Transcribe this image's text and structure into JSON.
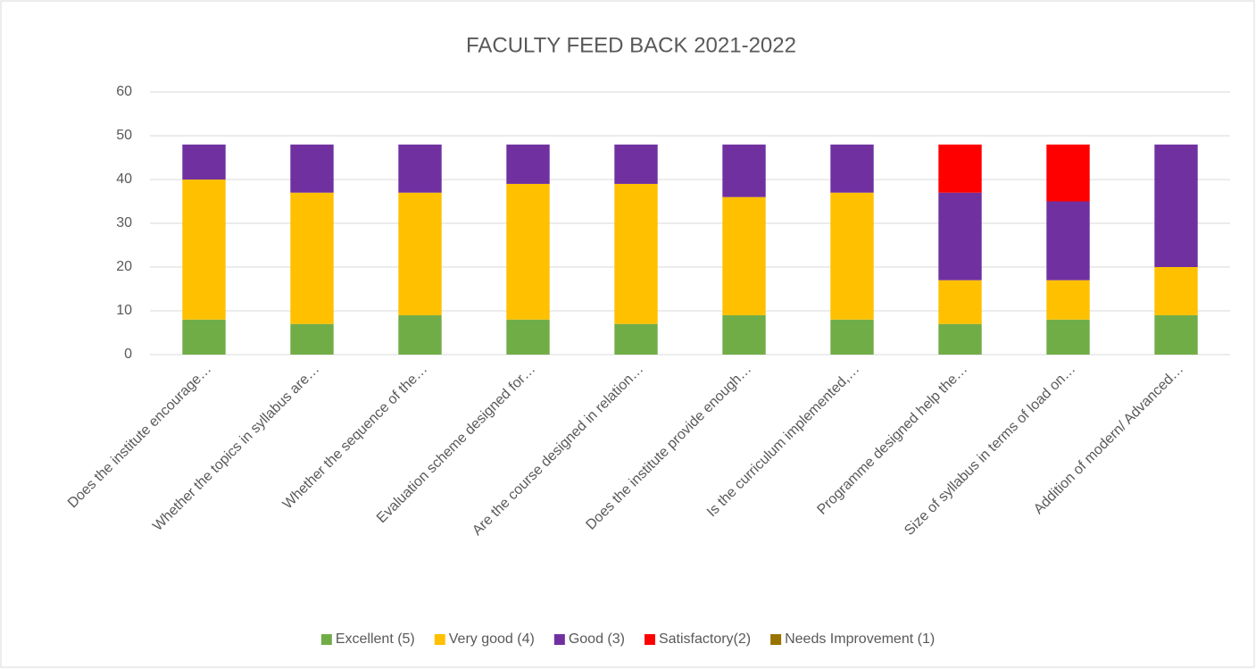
{
  "chart_data": {
    "type": "bar",
    "stacked": true,
    "title": "FACULTY FEED BACK 2021-2022",
    "categories": [
      "Does the institute encourage…",
      "Whether the topics in syllabus are…",
      "Whether the sequence of the…",
      "Evaluation scheme designed for…",
      "Are the course designed in relation…",
      "Does the institute provide enough…",
      "Is the curriculum implemented,…",
      "Programme designed help the…",
      "Size of syllabus in terms of load on…",
      "Addition of modern/ Advanced…"
    ],
    "series": [
      {
        "name": "Excellent (5)",
        "color": "#70ad47",
        "values": [
          8,
          7,
          9,
          8,
          7,
          9,
          8,
          7,
          8,
          9
        ]
      },
      {
        "name": "Very good (4)",
        "color": "#ffc000",
        "values": [
          32,
          30,
          28,
          31,
          32,
          27,
          29,
          10,
          9,
          11
        ]
      },
      {
        "name": "Good (3)",
        "color": "#7030a0",
        "values": [
          8,
          11,
          11,
          9,
          9,
          12,
          11,
          20,
          18,
          28
        ]
      },
      {
        "name": "Satisfactory(2)",
        "color": "#ff0000",
        "values": [
          0,
          0,
          0,
          0,
          0,
          0,
          0,
          11,
          13,
          0
        ]
      },
      {
        "name": "Needs Improvement (1)",
        "color": "#997300",
        "values": [
          0,
          0,
          0,
          0,
          0,
          0,
          0,
          0,
          0,
          0
        ]
      }
    ],
    "ylim": [
      0,
      60
    ],
    "yticks": [
      0,
      10,
      20,
      30,
      40,
      50,
      60
    ],
    "grid": true,
    "legend": "bottom"
  }
}
